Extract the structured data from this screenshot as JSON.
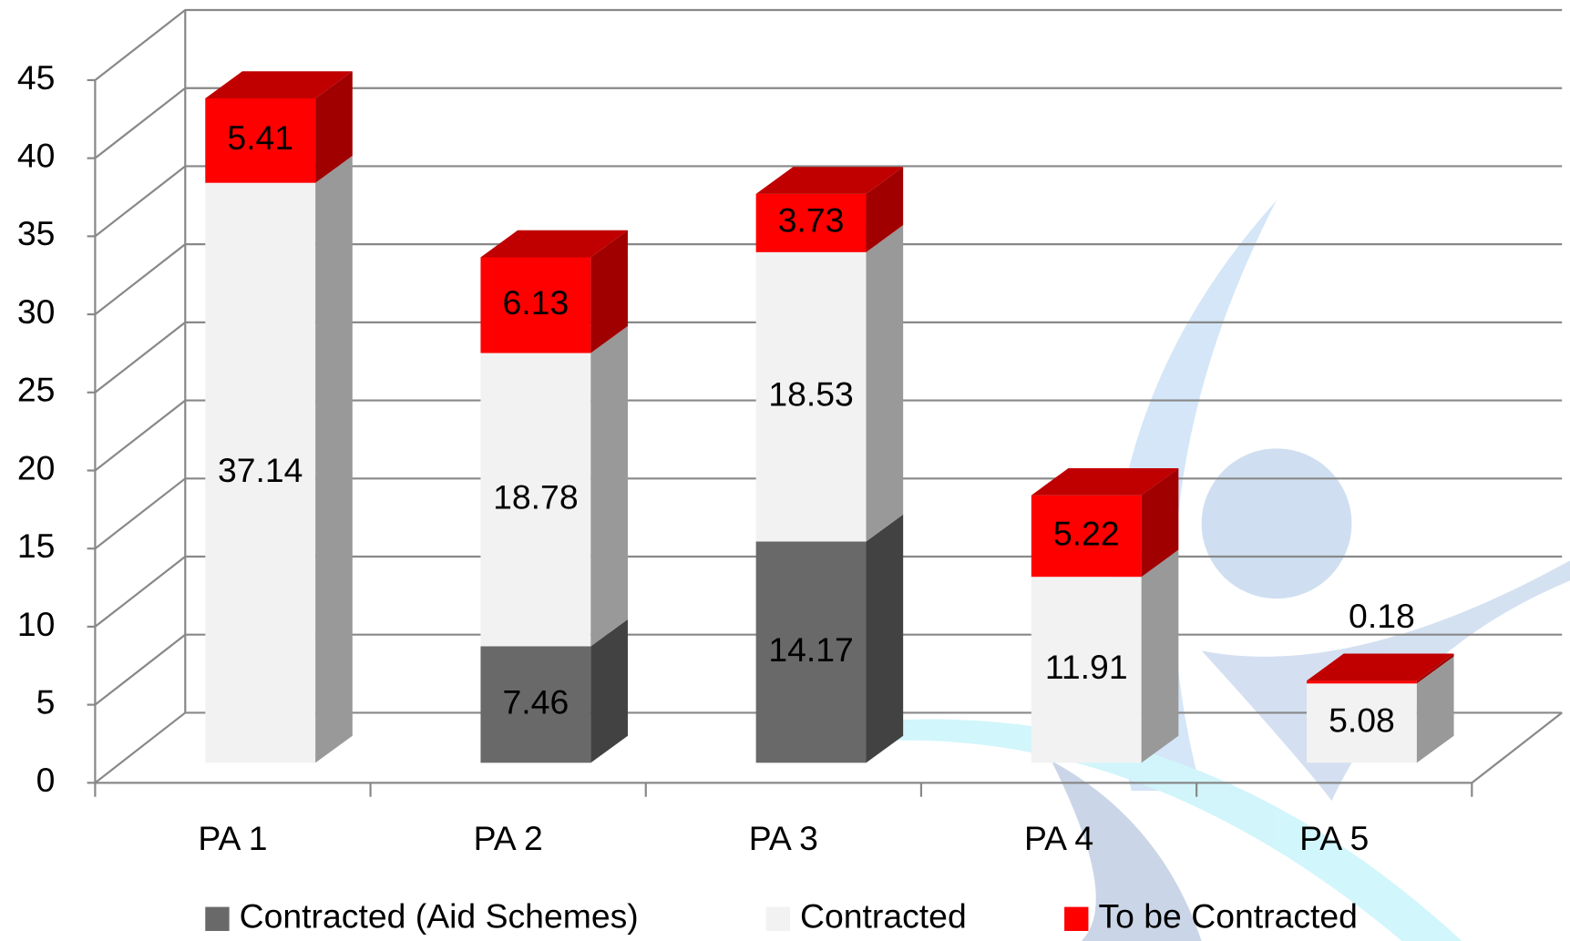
{
  "chart_data": {
    "type": "bar3d_stacked",
    "categories": [
      "PA 1",
      "PA 2",
      "PA 3",
      "PA 4",
      "PA 5"
    ],
    "series": [
      {
        "name": "Contracted (Aid Schemes)",
        "color": "#696969",
        "values": [
          null,
          7.46,
          14.17,
          null,
          null
        ]
      },
      {
        "name": "Contracted",
        "color": "#f2f2f2",
        "values": [
          37.14,
          18.78,
          18.53,
          11.91,
          5.08
        ]
      },
      {
        "name": "To be Contracted",
        "color": "#ff0000",
        "values": [
          5.41,
          6.13,
          3.73,
          5.22,
          0.18
        ]
      }
    ],
    "ylim": [
      0,
      45
    ],
    "yticks": [
      0,
      5,
      10,
      15,
      20,
      25,
      30,
      35,
      40,
      45
    ],
    "grid": true,
    "legend": "bottom"
  }
}
